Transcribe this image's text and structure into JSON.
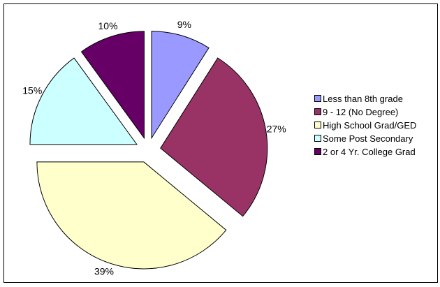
{
  "chart_data": {
    "type": "pie",
    "exploded": true,
    "legend_position": "right",
    "slices": [
      {
        "label": "Less than 8th grade",
        "value": 9,
        "value_label": "9%",
        "color": "#9999FF"
      },
      {
        "label": "9 - 12 (No Degree)",
        "value": 27,
        "value_label": "27%",
        "color": "#993366"
      },
      {
        "label": "High School Grad/GED",
        "value": 39,
        "value_label": "39%",
        "color": "#FFFFCC"
      },
      {
        "label": "Some Post Secondary",
        "value": 15,
        "value_label": "15%",
        "color": "#CCFFFF"
      },
      {
        "label": "2 or 4 Yr. College Grad",
        "value": 10,
        "value_label": "10%",
        "color": "#660066"
      }
    ]
  }
}
